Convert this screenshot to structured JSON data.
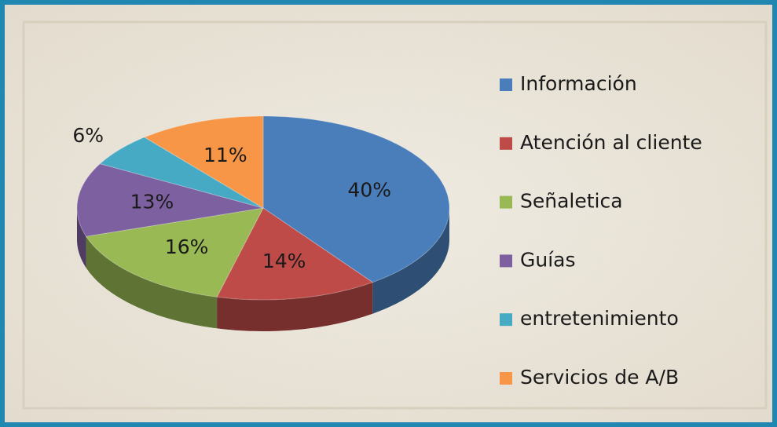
{
  "chart_data": {
    "type": "pie3d",
    "categories": [
      "Información",
      "Atención al cliente",
      "Señaletica",
      "Guías",
      "entretenimiento",
      "Servicios de A/B"
    ],
    "values": [
      40,
      14,
      16,
      13,
      6,
      11
    ],
    "value_labels": [
      "40%",
      "14%",
      "16%",
      "13%",
      "6%",
      "11%"
    ],
    "colors": [
      "#4a7ebb",
      "#be4b48",
      "#98b954",
      "#7d60a0",
      "#46aac5",
      "#f79646"
    ],
    "legend": "right"
  }
}
